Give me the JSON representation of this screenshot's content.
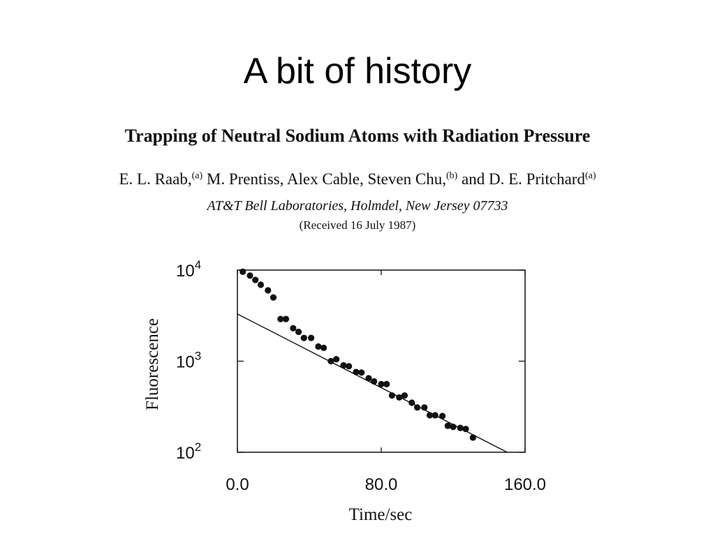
{
  "slide": {
    "title": "A bit of history"
  },
  "paper": {
    "title": "Trapping of Neutral Sodium Atoms with Radiation Pressure",
    "authors": [
      {
        "name": "E. L. Raab,",
        "sup": "(a)"
      },
      {
        "name": " M. Prentiss, Alex Cable, Steven Chu,",
        "sup": "(b)"
      },
      {
        "name": " and D. E. Pritchard",
        "sup": "(a)"
      }
    ],
    "affiliation": "AT&T Bell Laboratories, Holmdel, New Jersey 07733",
    "received": "(Received 16 July 1987)"
  },
  "chart_data": {
    "type": "scatter",
    "xlabel": "Time/sec",
    "ylabel": "Fluorescence",
    "xlim": [
      0,
      160
    ],
    "ylim": [
      100,
      10000
    ],
    "yscale": "log",
    "x_ticks": [
      {
        "value": 0,
        "label": "0.0"
      },
      {
        "value": 80,
        "label": "80.0"
      },
      {
        "value": 160,
        "label": "160.0"
      }
    ],
    "y_ticks": [
      {
        "value": 100,
        "base": "10",
        "exp": "2"
      },
      {
        "value": 1000,
        "base": "10",
        "exp": "3"
      },
      {
        "value": 10000,
        "base": "10",
        "exp": "4"
      }
    ],
    "points": [
      [
        3,
        9600
      ],
      [
        7,
        8700
      ],
      [
        10,
        7800
      ],
      [
        13,
        6900
      ],
      [
        17,
        6000
      ],
      [
        20,
        5000
      ],
      [
        24,
        2900
      ],
      [
        27,
        2900
      ],
      [
        31,
        2300
      ],
      [
        34,
        2100
      ],
      [
        37,
        1800
      ],
      [
        41,
        1800
      ],
      [
        45,
        1450
      ],
      [
        48,
        1400
      ],
      [
        52,
        1000
      ],
      [
        55,
        1050
      ],
      [
        59,
        900
      ],
      [
        62,
        880
      ],
      [
        66,
        760
      ],
      [
        69,
        750
      ],
      [
        73,
        650
      ],
      [
        76,
        600
      ],
      [
        80,
        560
      ],
      [
        83,
        560
      ],
      [
        86,
        420
      ],
      [
        90,
        400
      ],
      [
        93,
        420
      ],
      [
        97,
        350
      ],
      [
        100,
        310
      ],
      [
        104,
        310
      ],
      [
        107,
        255
      ],
      [
        110,
        255
      ],
      [
        114,
        250
      ],
      [
        117,
        195
      ],
      [
        120,
        190
      ],
      [
        124,
        185
      ],
      [
        127,
        180
      ],
      [
        131,
        145
      ]
    ],
    "fit_line": {
      "x": [
        0,
        150
      ],
      "y": [
        3300,
        100
      ]
    },
    "colors": {
      "ink": "#111111"
    }
  }
}
